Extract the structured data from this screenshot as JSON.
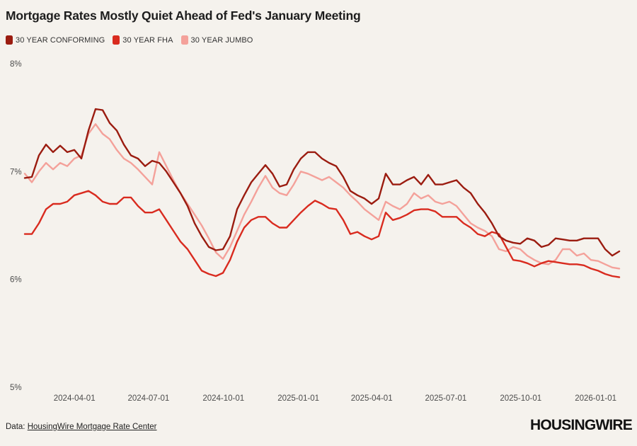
{
  "header": {
    "title": "Mortgage Rates Mostly Quiet Ahead of Fed's January Meeting"
  },
  "footer": {
    "source_prefix": "Data:",
    "source_link": "HousingWire Mortgage Rate Center",
    "logo_text": "HOUSINGWIRE"
  },
  "colors": {
    "background": "#f5f2ed",
    "conforming": "#9b1c10",
    "fha": "#d92b1f",
    "jumbo": "#f4a19a",
    "axis_text": "#4c4c4c"
  },
  "chart_data": {
    "type": "line",
    "title": "Mortgage Rates Mostly Quiet Ahead of Fed's January Meeting",
    "xlabel": "",
    "ylabel": "",
    "grid": false,
    "legend_position": "top-left",
    "y_axis": {
      "unit": "%",
      "min": 5,
      "max": 8,
      "ticks": [
        8,
        7,
        6,
        5
      ],
      "tick_labels": [
        "8%",
        "7%",
        "6%",
        "5%"
      ]
    },
    "x_axis": {
      "ticks": [
        {
          "date": "2024-04-01",
          "label": "2024-04-01"
        },
        {
          "date": "2024-07-01",
          "label": "2024-07-01"
        },
        {
          "date": "2024-10-01",
          "label": "2024-10-01"
        },
        {
          "date": "2025-01-01",
          "label": "2025-01-01"
        },
        {
          "date": "2025-04-01",
          "label": "2025-04-01"
        },
        {
          "date": "2025-07-01",
          "label": "2025-07-01"
        },
        {
          "date": "2025-10-01",
          "label": "2025-10-01"
        },
        {
          "date": "2026-01-01",
          "label": "2026-01-01"
        }
      ]
    },
    "sampling": {
      "start_date": "2024-01-31",
      "end_date": "2026-01-30",
      "n_points": 85,
      "note": "values sampled at equal ~8.7-day intervals, percent APR"
    },
    "series": [
      {
        "name": "30 YEAR CONFORMING",
        "color": "#9b1c10",
        "values": [
          6.94,
          6.95,
          7.15,
          7.25,
          7.18,
          7.24,
          7.18,
          7.2,
          7.12,
          7.38,
          7.58,
          7.57,
          7.45,
          7.38,
          7.25,
          7.15,
          7.12,
          7.05,
          7.1,
          7.08,
          7.0,
          6.9,
          6.8,
          6.68,
          6.52,
          6.4,
          6.3,
          6.27,
          6.28,
          6.4,
          6.65,
          6.78,
          6.9,
          6.98,
          7.06,
          6.98,
          6.86,
          6.88,
          7.02,
          7.12,
          7.18,
          7.18,
          7.12,
          7.08,
          7.05,
          6.95,
          6.82,
          6.78,
          6.75,
          6.7,
          6.75,
          6.98,
          6.88,
          6.88,
          6.92,
          6.95,
          6.88,
          6.97,
          6.88,
          6.88,
          6.9,
          6.92,
          6.85,
          6.8,
          6.7,
          6.62,
          6.52,
          6.4,
          6.36,
          6.34,
          6.33,
          6.38,
          6.36,
          6.3,
          6.32,
          6.38,
          6.37,
          6.36,
          6.36,
          6.38,
          6.38,
          6.38,
          6.28,
          6.22,
          6.26
        ]
      },
      {
        "name": "30 YEAR FHA",
        "color": "#d92b1f",
        "values": [
          6.42,
          6.42,
          6.52,
          6.65,
          6.7,
          6.7,
          6.72,
          6.78,
          6.8,
          6.82,
          6.78,
          6.72,
          6.7,
          6.7,
          6.76,
          6.76,
          6.68,
          6.62,
          6.62,
          6.65,
          6.55,
          6.45,
          6.35,
          6.28,
          6.18,
          6.08,
          6.05,
          6.03,
          6.06,
          6.18,
          6.35,
          6.48,
          6.55,
          6.58,
          6.58,
          6.52,
          6.48,
          6.48,
          6.55,
          6.62,
          6.68,
          6.73,
          6.7,
          6.66,
          6.65,
          6.55,
          6.42,
          6.44,
          6.4,
          6.37,
          6.4,
          6.62,
          6.55,
          6.57,
          6.6,
          6.64,
          6.65,
          6.65,
          6.63,
          6.58,
          6.58,
          6.58,
          6.52,
          6.48,
          6.42,
          6.4,
          6.44,
          6.42,
          6.3,
          6.18,
          6.17,
          6.15,
          6.12,
          6.15,
          6.17,
          6.16,
          6.15,
          6.14,
          6.14,
          6.13,
          6.1,
          6.08,
          6.05,
          6.03,
          6.02
        ]
      },
      {
        "name": "30 YEAR JUMBO",
        "color": "#f4a19a",
        "values": [
          6.98,
          6.9,
          7.0,
          7.08,
          7.02,
          7.08,
          7.05,
          7.12,
          7.15,
          7.35,
          7.44,
          7.35,
          7.3,
          7.2,
          7.12,
          7.08,
          7.02,
          6.95,
          6.88,
          7.18,
          7.05,
          6.92,
          6.8,
          6.7,
          6.6,
          6.5,
          6.38,
          6.25,
          6.19,
          6.3,
          6.45,
          6.6,
          6.72,
          6.85,
          6.96,
          6.85,
          6.8,
          6.78,
          6.88,
          7.0,
          6.98,
          6.95,
          6.92,
          6.95,
          6.9,
          6.85,
          6.78,
          6.72,
          6.65,
          6.6,
          6.55,
          6.72,
          6.68,
          6.65,
          6.7,
          6.8,
          6.75,
          6.78,
          6.72,
          6.7,
          6.72,
          6.68,
          6.6,
          6.52,
          6.48,
          6.45,
          6.4,
          6.28,
          6.26,
          6.3,
          6.28,
          6.22,
          6.18,
          6.15,
          6.14,
          6.18,
          6.28,
          6.28,
          6.22,
          6.24,
          6.18,
          6.17,
          6.14,
          6.11,
          6.1
        ]
      }
    ]
  }
}
